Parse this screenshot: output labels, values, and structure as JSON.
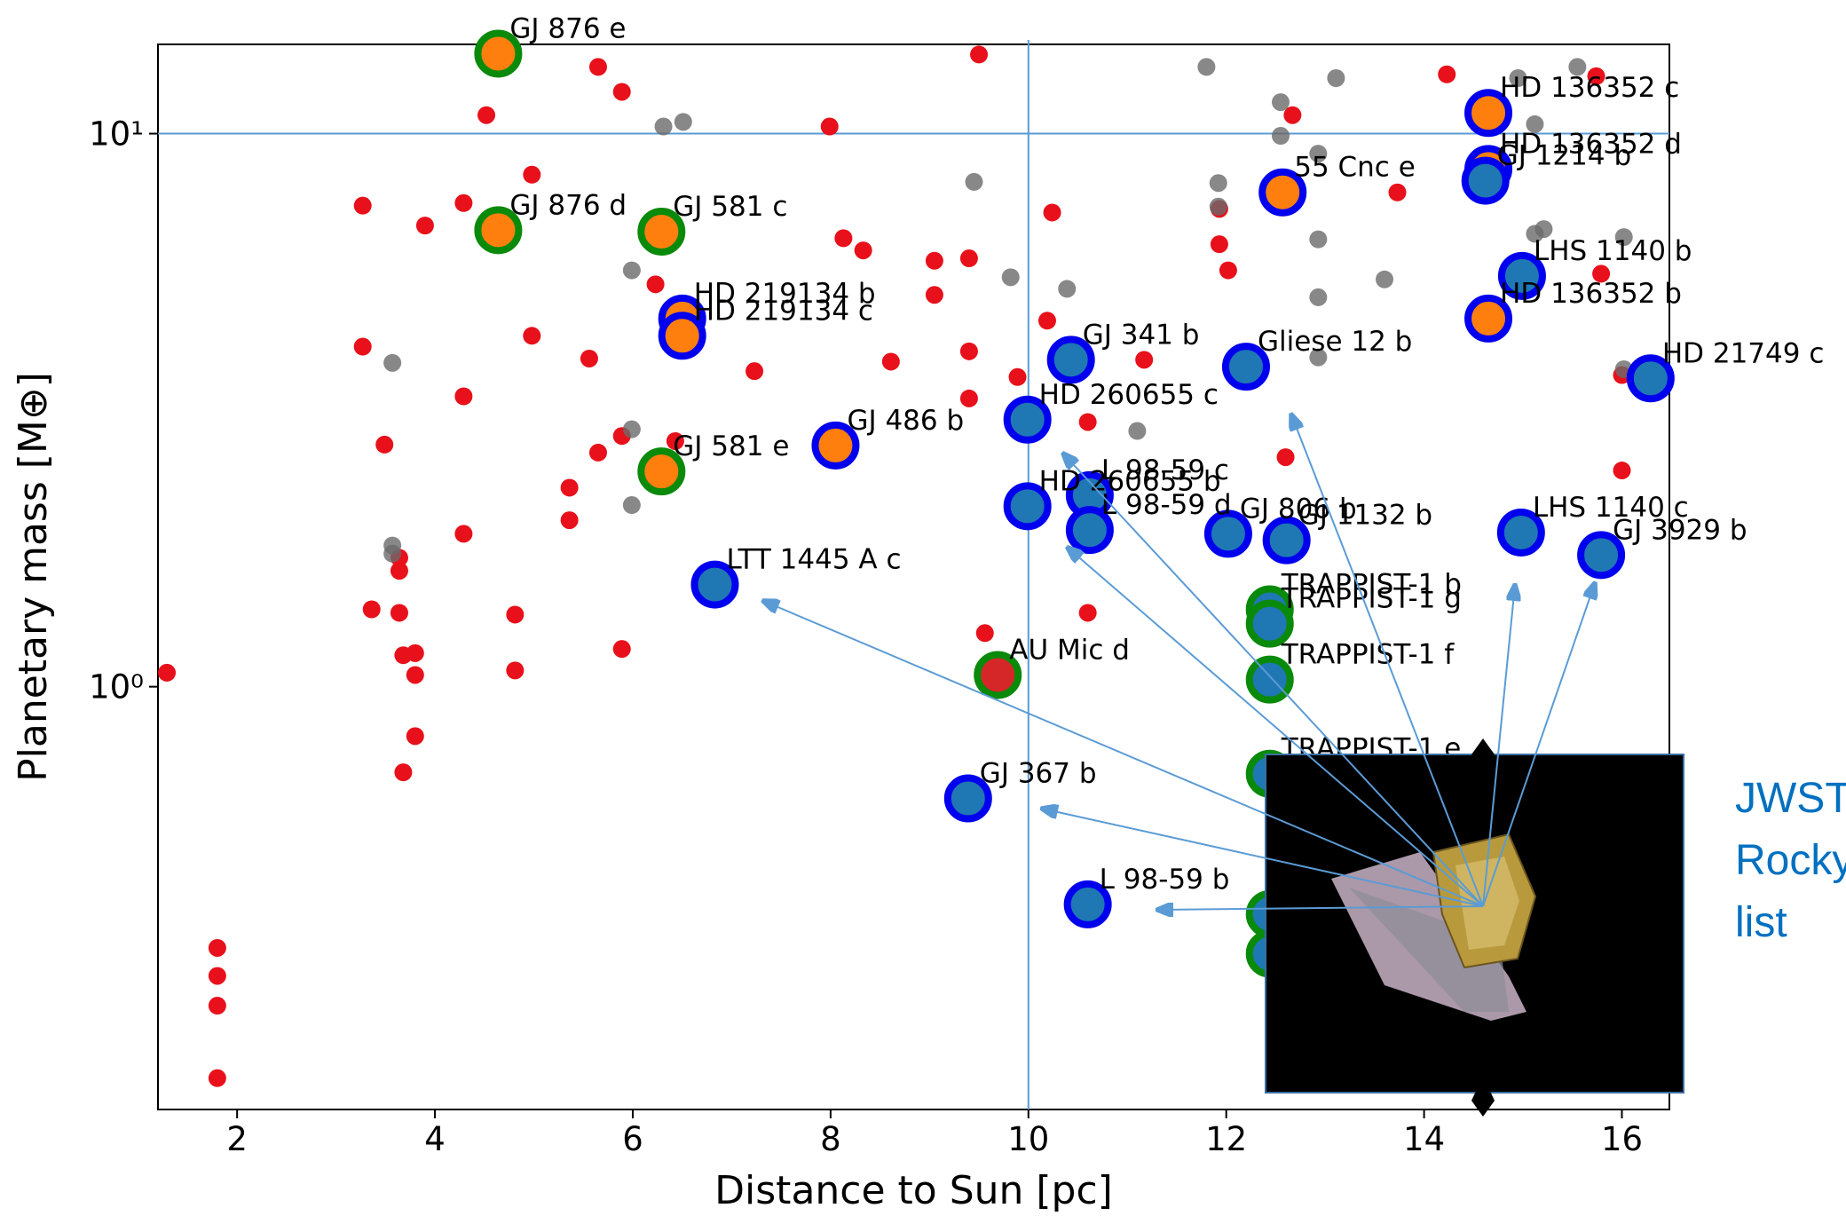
{
  "chart_data": {
    "type": "scatter",
    "x_label": "Distance to Sun [pc]",
    "y_label": "Planetary mass [M⊕]",
    "xlim": [
      1.2,
      16.48
    ],
    "ylim": [
      0.172,
      14.5
    ],
    "log_y": true,
    "xticks": [
      2,
      4,
      6,
      8,
      10,
      12,
      14,
      16
    ],
    "yticks": [
      {
        "value": 1,
        "label": "10⁰"
      },
      {
        "value": 10,
        "label": "10¹"
      }
    ],
    "ref_lines": {
      "x": 10,
      "y": 10
    },
    "annotation": [
      "JWST",
      "Rocky",
      "list"
    ],
    "series": [
      {
        "color": "#e8101a",
        "x": [
          1.29,
          1.8,
          1.8,
          1.8,
          1.8,
          3.27,
          3.27,
          3.36,
          3.49,
          3.64,
          3.64,
          3.64,
          3.68,
          3.68,
          3.8,
          3.8,
          3.8,
          4.29,
          4.29,
          4.29,
          3.9,
          4.52,
          4.98,
          4.98,
          4.81,
          4.81,
          5.36,
          5.36,
          5.56,
          5.65,
          5.65,
          5.89,
          5.89,
          5.89,
          6.23,
          6.43,
          7.23,
          7.99,
          8.13,
          8.33,
          8.61,
          9.05,
          9.05,
          9.4,
          9.4,
          9.4,
          9.5,
          9.56,
          9.89,
          10.19,
          10.24,
          10.6,
          10.6,
          11.17,
          11.93,
          11.93,
          12.02,
          12.6,
          12.67,
          13.73,
          14.23,
          15.74,
          15.79,
          16.0,
          16.0
        ],
        "values": [
          1.06,
          0.337,
          0.3,
          0.265,
          0.196,
          7.41,
          4.12,
          1.38,
          2.74,
          1.71,
          1.62,
          1.36,
          1.14,
          0.7,
          1.15,
          1.05,
          0.814,
          7.49,
          3.35,
          1.89,
          6.82,
          10.8,
          8.43,
          4.31,
          1.35,
          1.07,
          2.29,
          2.0,
          3.92,
          13.2,
          2.65,
          11.9,
          2.84,
          1.17,
          5.34,
          2.78,
          3.72,
          10.3,
          6.47,
          6.15,
          3.87,
          5.89,
          5.11,
          5.95,
          4.04,
          3.32,
          13.9,
          1.25,
          3.63,
          4.59,
          7.2,
          3.01,
          1.36,
          3.9,
          7.31,
          6.31,
          5.66,
          2.6,
          10.8,
          7.83,
          12.8,
          12.7,
          5.58,
          2.46,
          3.66
        ]
      },
      {
        "color": "#6a6a6a",
        "x": [
          11.8,
          12.55,
          12.55,
          13.11,
          12.93,
          11.92,
          11.92,
          12.93,
          12.93,
          12.93,
          13.6,
          14.95,
          15.12,
          15.55,
          15.12,
          15.21,
          16.02,
          16.02,
          6.31,
          6.51,
          9.45,
          9.82,
          10.39,
          11.1,
          5.99,
          5.99,
          5.99,
          3.57,
          3.57,
          3.57
        ],
        "values": [
          13.2,
          11.4,
          9.91,
          12.6,
          9.2,
          8.14,
          7.38,
          6.44,
          5.06,
          3.94,
          5.45,
          12.6,
          10.4,
          13.2,
          6.59,
          6.72,
          6.5,
          3.75,
          10.3,
          10.5,
          8.18,
          5.5,
          5.24,
          2.9,
          5.66,
          2.92,
          2.13,
          1.8,
          1.74,
          3.85
        ]
      },
      {
        "labels": [
          "GJ 876 e",
          "GJ 876 d",
          "GJ 581 c",
          "GJ 581 e",
          "HD 219134 b",
          "HD 219134 c",
          "GJ 486 b",
          "LTT 1445 A c",
          "AU Mic d",
          "GJ 367 b",
          "L 98-59 b",
          "HD 260655 c",
          "HD 260655 b",
          "L 98-59 c",
          "L 98-59 d",
          "GJ 341 b",
          "Gliese 12 b",
          "GJ 806 b",
          "GJ 1132 b",
          "55 Cnc e",
          "HD 136352 c",
          "HD 136352 d",
          "GJ 1214 b",
          "LHS 1140 b",
          "HD 136352 b",
          "HD 21749 c",
          "LHS 1140 c",
          "GJ 3929 b",
          "TRAPPIST-1 b",
          "TRAPPIST-1 g",
          "TRAPPIST-1 f",
          "TRAPPIST-1 e",
          null,
          null
        ],
        "x": [
          4.64,
          4.64,
          6.29,
          6.29,
          6.5,
          6.5,
          8.05,
          6.83,
          9.69,
          9.39,
          10.6,
          9.99,
          9.99,
          10.62,
          10.62,
          10.43,
          12.2,
          12.02,
          12.61,
          12.57,
          14.65,
          14.65,
          14.62,
          14.99,
          14.65,
          16.29,
          14.98,
          15.79,
          12.44,
          12.44,
          12.44,
          12.44,
          12.44,
          12.44
        ],
        "values": [
          13.95,
          6.69,
          6.65,
          2.45,
          4.63,
          4.31,
          2.73,
          1.53,
          1.05,
          0.628,
          0.404,
          3.04,
          2.12,
          2.22,
          1.92,
          3.9,
          3.79,
          1.89,
          1.84,
          7.83,
          10.9,
          8.63,
          8.22,
          5.53,
          4.63,
          3.61,
          1.9,
          1.73,
          1.38,
          1.3,
          1.03,
          0.696,
          0.388,
          0.329
        ],
        "edge_colors": [
          "#0a8a0a",
          "#0a8a0a",
          "#0a8a0a",
          "#0a8a0a",
          "#0000ee",
          "#0000ee",
          "#0000ee",
          "#0000ee",
          "#0a8a0a",
          "#0000ee",
          "#0000ee",
          "#0000ee",
          "#0000ee",
          "#0000ee",
          "#0000ee",
          "#0000ee",
          "#0000ee",
          "#0000ee",
          "#0000ee",
          "#0000ee",
          "#0000ee",
          "#0000ee",
          "#0000ee",
          "#0000ee",
          "#0000ee",
          "#0000ee",
          "#0000ee",
          "#0000ee",
          "#0a8a0a",
          "#0a8a0a",
          "#0a8a0a",
          "#0a8a0a",
          "#0a8a0a",
          "#0a8a0a"
        ],
        "colors": [
          "#ff7f0e",
          "#ff7f0e",
          "#ff7f0e",
          "#ff7f0e",
          "#ff7f0e",
          "#ff7f0e",
          "#ff7f0e",
          "#1f77b4",
          "#d62728",
          "#1f77b4",
          "#1f77b4",
          "#1f77b4",
          "#1f77b4",
          "#1f77b4",
          "#1f77b4",
          "#1f77b4",
          "#1f77b4",
          "#1f77b4",
          "#1f77b4",
          "#ff7f0e",
          "#ff7f0e",
          "#ff7f0e",
          "#1f77b4",
          "#1f77b4",
          "#ff7f0e",
          "#1f77b4",
          "#1f77b4",
          "#1f77b4",
          "#1f77b4",
          "#1f77b4",
          "#1f77b4",
          "#1f77b4",
          "#1f77b4",
          "#1f77b4"
        ]
      }
    ]
  }
}
